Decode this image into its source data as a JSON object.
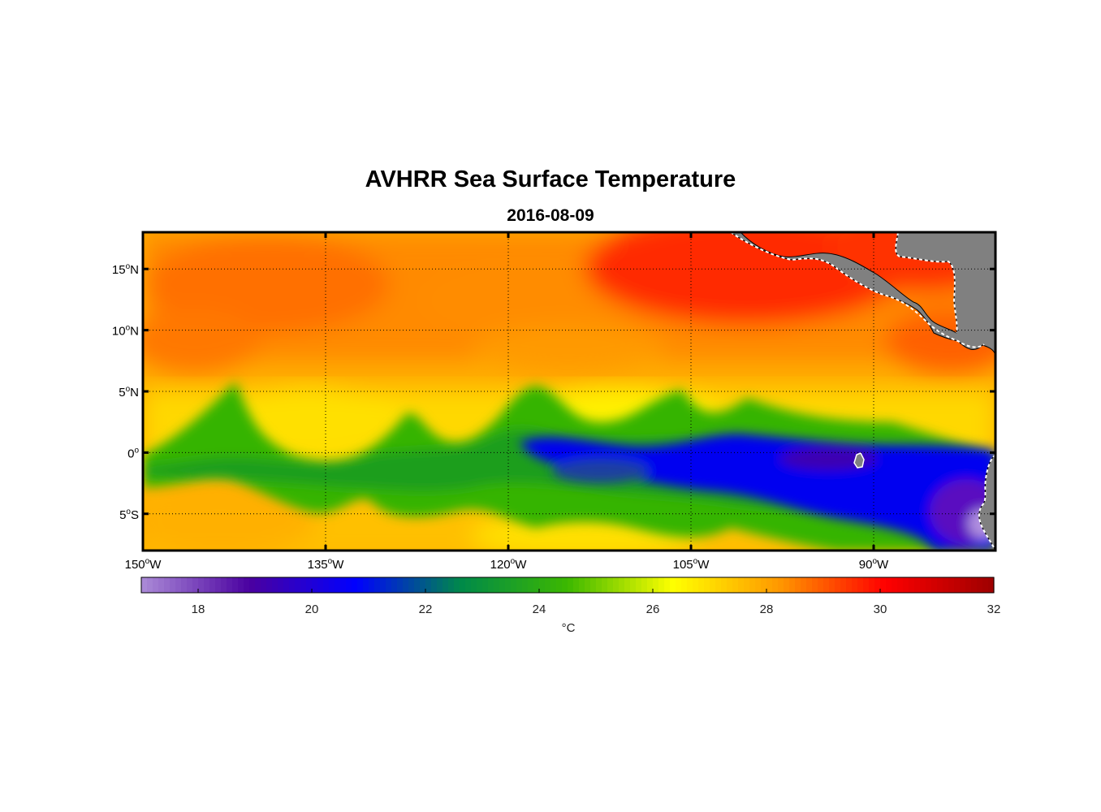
{
  "figure": {
    "title": "AVHRR Sea Surface Temperature",
    "date": "2016-08-09"
  },
  "map": {
    "region": "Eastern tropical Pacific",
    "lon_range": [
      -150,
      -80
    ],
    "lat_range": [
      -8,
      18
    ],
    "land_color": "#808080",
    "lat_ticks": [
      {
        "value": 15,
        "num": "15",
        "hemi": "N"
      },
      {
        "value": 10,
        "num": "10",
        "hemi": "N"
      },
      {
        "value": 5,
        "num": "5",
        "hemi": "N"
      },
      {
        "value": 0,
        "num": "0",
        "hemi": ""
      },
      {
        "value": -5,
        "num": "5",
        "hemi": "S"
      }
    ],
    "lon_ticks": [
      {
        "value": -150,
        "num": "150",
        "hemi": "W"
      },
      {
        "value": -135,
        "num": "135",
        "hemi": "W"
      },
      {
        "value": -120,
        "num": "120",
        "hemi": "W"
      },
      {
        "value": -105,
        "num": "105",
        "hemi": "W"
      },
      {
        "value": -90,
        "num": "90",
        "hemi": "W"
      }
    ]
  },
  "colorbar": {
    "min": 17,
    "max": 32,
    "ticks": [
      "18",
      "20",
      "22",
      "24",
      "26",
      "28",
      "30",
      "32"
    ],
    "unit": "°C",
    "colors": [
      "#a988d6",
      "#4a00a0",
      "#0000ff",
      "#008a48",
      "#3cb800",
      "#ffff00",
      "#ff9800",
      "#ff0000",
      "#a00000"
    ]
  }
}
